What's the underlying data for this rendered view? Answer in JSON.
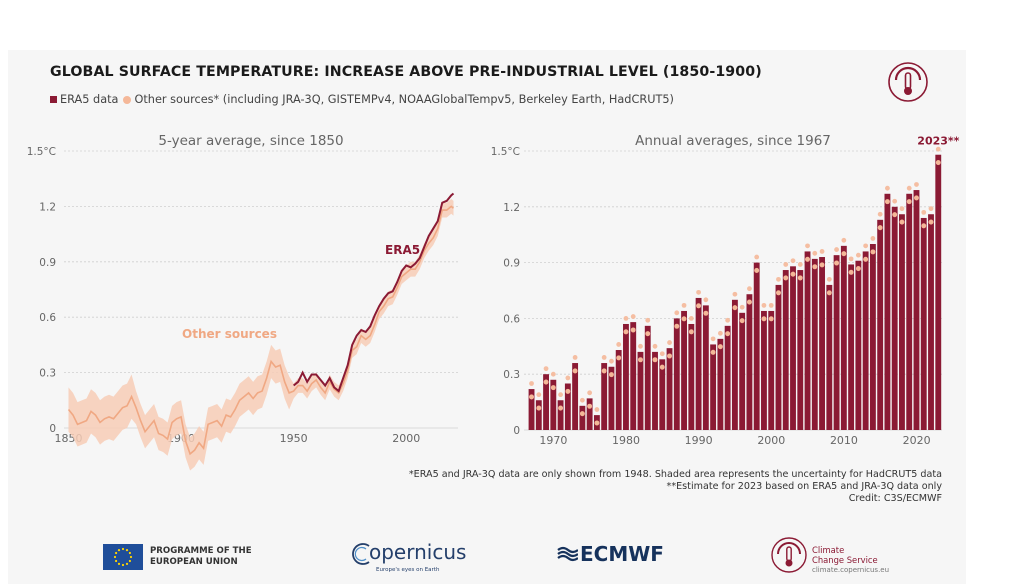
{
  "title": "GLOBAL SURFACE TEMPERATURE: INCREASE ABOVE PRE-INDUSTRIAL LEVEL (1850-1900)",
  "legend": {
    "era5_label": "ERA5 data",
    "other_label": "Other sources* (including JRA-3Q, GISTEMPv4, NOAAGlobalTempv5, Berkeley Earth, HadCRUT5)"
  },
  "colors": {
    "era5": "#8b1a34",
    "other": "#f0a883",
    "band": "#f7cdb6",
    "grid": "#cfcfcf",
    "axis_text": "#666666"
  },
  "chart_data": [
    {
      "type": "line",
      "title": "5-year average, since 1850",
      "ylim": [
        0,
        1.5
      ],
      "xlim": [
        1848,
        2023
      ],
      "y_ticks": [
        "0",
        "0.3",
        "0.6",
        "0.9",
        "1.2",
        "1.5°C"
      ],
      "y_tick_values": [
        0,
        0.3,
        0.6,
        0.9,
        1.2,
        1.5
      ],
      "x_ticks": [
        "1850",
        "1900",
        "1950",
        "2000"
      ],
      "x_tick_values": [
        1850,
        1900,
        1950,
        2000
      ],
      "annotations": {
        "era5": "ERA5",
        "other": "Other sources"
      },
      "series": [
        {
          "name": "Other sources",
          "x": [
            1850,
            1852,
            1854,
            1856,
            1858,
            1860,
            1862,
            1864,
            1866,
            1868,
            1870,
            1872,
            1874,
            1876,
            1878,
            1880,
            1882,
            1884,
            1886,
            1888,
            1890,
            1892,
            1894,
            1896,
            1898,
            1900,
            1902,
            1904,
            1906,
            1908,
            1910,
            1912,
            1914,
            1916,
            1918,
            1920,
            1922,
            1924,
            1926,
            1928,
            1930,
            1932,
            1934,
            1936,
            1938,
            1940,
            1942,
            1944,
            1946,
            1948,
            1950,
            1952,
            1954,
            1956,
            1958,
            1960,
            1962,
            1964,
            1966,
            1968,
            1970,
            1972,
            1974,
            1976,
            1978,
            1980,
            1982,
            1984,
            1986,
            1988,
            1990,
            1992,
            1994,
            1996,
            1998,
            2000,
            2002,
            2004,
            2006,
            2008,
            2010,
            2012,
            2014,
            2016,
            2018,
            2020,
            2021
          ],
          "values": [
            0.1,
            0.07,
            0.02,
            0.03,
            0.04,
            0.09,
            0.07,
            0.03,
            0.05,
            0.06,
            0.05,
            0.08,
            0.11,
            0.12,
            0.17,
            0.11,
            0.04,
            -0.02,
            0.01,
            0.04,
            -0.03,
            -0.04,
            -0.06,
            0.03,
            0.05,
            0.06,
            -0.07,
            -0.14,
            -0.12,
            -0.08,
            -0.11,
            0.02,
            0.03,
            0.04,
            0.01,
            0.07,
            0.06,
            0.1,
            0.15,
            0.17,
            0.19,
            0.16,
            0.19,
            0.2,
            0.27,
            0.36,
            0.33,
            0.34,
            0.25,
            0.19,
            0.2,
            0.23,
            0.23,
            0.2,
            0.24,
            0.26,
            0.22,
            0.19,
            0.25,
            0.21,
            0.19,
            0.24,
            0.31,
            0.42,
            0.44,
            0.5,
            0.48,
            0.5,
            0.56,
            0.63,
            0.66,
            0.7,
            0.71,
            0.76,
            0.82,
            0.84,
            0.86,
            0.86,
            0.9,
            0.96,
            1.0,
            1.03,
            1.08,
            1.18,
            1.18,
            1.2,
            1.19
          ]
        },
        {
          "name": "ERA5",
          "x": [
            1950,
            1952,
            1954,
            1956,
            1958,
            1960,
            1962,
            1964,
            1966,
            1968,
            1970,
            1972,
            1974,
            1976,
            1978,
            1980,
            1982,
            1984,
            1986,
            1988,
            1990,
            1992,
            1994,
            1996,
            1998,
            2000,
            2002,
            2004,
            2006,
            2008,
            2010,
            2012,
            2014,
            2016,
            2018,
            2020,
            2021
          ],
          "values": [
            0.23,
            0.25,
            0.3,
            0.25,
            0.29,
            0.29,
            0.26,
            0.23,
            0.27,
            0.22,
            0.2,
            0.27,
            0.34,
            0.45,
            0.5,
            0.53,
            0.52,
            0.55,
            0.61,
            0.66,
            0.7,
            0.73,
            0.74,
            0.79,
            0.85,
            0.88,
            0.87,
            0.89,
            0.92,
            0.98,
            1.04,
            1.08,
            1.12,
            1.22,
            1.23,
            1.26,
            1.27
          ]
        }
      ]
    },
    {
      "type": "bar",
      "title": "Annual averages, since 1967",
      "ylim": [
        0,
        1.5
      ],
      "y_ticks": [
        "0",
        "0.3",
        "0.6",
        "0.9",
        "1.2",
        "1.5°C"
      ],
      "y_tick_values": [
        0,
        0.3,
        0.6,
        0.9,
        1.2,
        1.5
      ],
      "x_ticks": [
        "1970",
        "1980",
        "1990",
        "2000",
        "2010",
        "2020"
      ],
      "x_tick_values": [
        1970,
        1980,
        1990,
        2000,
        2010,
        2020
      ],
      "highlight_label": "2023**",
      "series": [
        {
          "name": "ERA5",
          "x": [
            1967,
            1968,
            1969,
            1970,
            1971,
            1972,
            1973,
            1974,
            1975,
            1976,
            1977,
            1978,
            1979,
            1980,
            1981,
            1982,
            1983,
            1984,
            1985,
            1986,
            1987,
            1988,
            1989,
            1990,
            1991,
            1992,
            1993,
            1994,
            1995,
            1996,
            1997,
            1998,
            1999,
            2000,
            2001,
            2002,
            2003,
            2004,
            2005,
            2006,
            2007,
            2008,
            2009,
            2010,
            2011,
            2012,
            2013,
            2014,
            2015,
            2016,
            2017,
            2018,
            2019,
            2020,
            2021,
            2022,
            2023
          ],
          "values": [
            0.22,
            0.16,
            0.3,
            0.27,
            0.16,
            0.25,
            0.36,
            0.13,
            0.17,
            0.08,
            0.36,
            0.34,
            0.43,
            0.57,
            0.58,
            0.42,
            0.56,
            0.42,
            0.38,
            0.44,
            0.6,
            0.64,
            0.57,
            0.71,
            0.67,
            0.46,
            0.49,
            0.56,
            0.7,
            0.63,
            0.73,
            0.9,
            0.64,
            0.64,
            0.78,
            0.86,
            0.88,
            0.86,
            0.96,
            0.92,
            0.93,
            0.78,
            0.94,
            0.99,
            0.89,
            0.91,
            0.96,
            1.0,
            1.13,
            1.27,
            1.2,
            1.16,
            1.27,
            1.29,
            1.14,
            1.16,
            1.48
          ]
        }
      ]
    }
  ],
  "footnotes": [
    "*ERA5 and JRA-3Q data are only shown from 1948. Shaded area represents the uncertainty for HadCRUT5 data",
    "**Estimate for 2023 based on ERA5 and JRA-3Q data only",
    "Credit: C3S/ECMWF"
  ],
  "footer": {
    "eu_line1": "PROGRAMME OF THE",
    "eu_line2": "EUROPEAN UNION",
    "copernicus": "opernicus",
    "copernicus_sub": "Europe's eyes on Earth",
    "ecmwf": "ECMWF",
    "c3s_line1": "Climate",
    "c3s_line2": "Change Service",
    "c3s_url": "climate.copernicus.eu"
  }
}
